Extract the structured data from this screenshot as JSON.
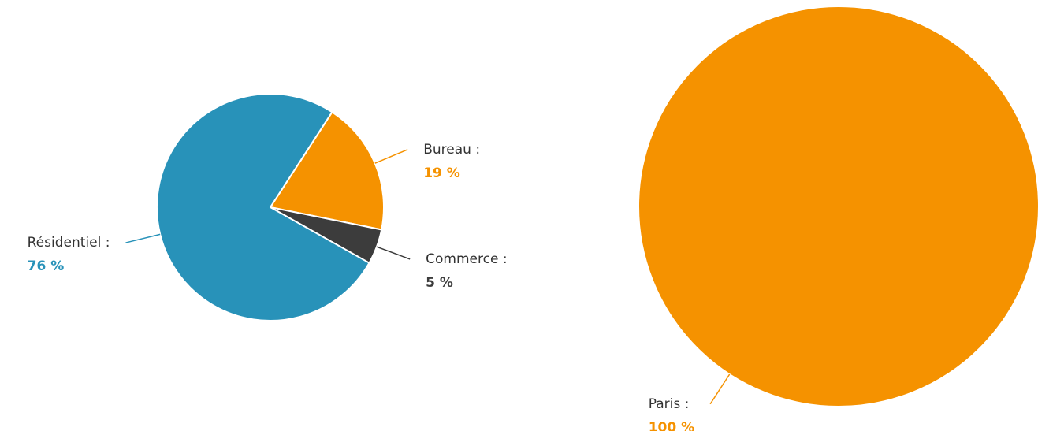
{
  "chart_data": [
    {
      "type": "pie",
      "categories": [
        "Bureau :",
        "Commerce :",
        "Résidentiel :"
      ],
      "values": [
        19,
        5,
        76
      ],
      "value_labels": [
        "19 %",
        "5 %",
        "76 %"
      ],
      "colors": [
        "#f59200",
        "#3c3c3c",
        "#2892b9"
      ]
    },
    {
      "type": "pie",
      "categories": [
        "Paris :"
      ],
      "values": [
        100
      ],
      "value_labels": [
        "100 %"
      ],
      "colors": [
        "#f59200"
      ]
    }
  ]
}
